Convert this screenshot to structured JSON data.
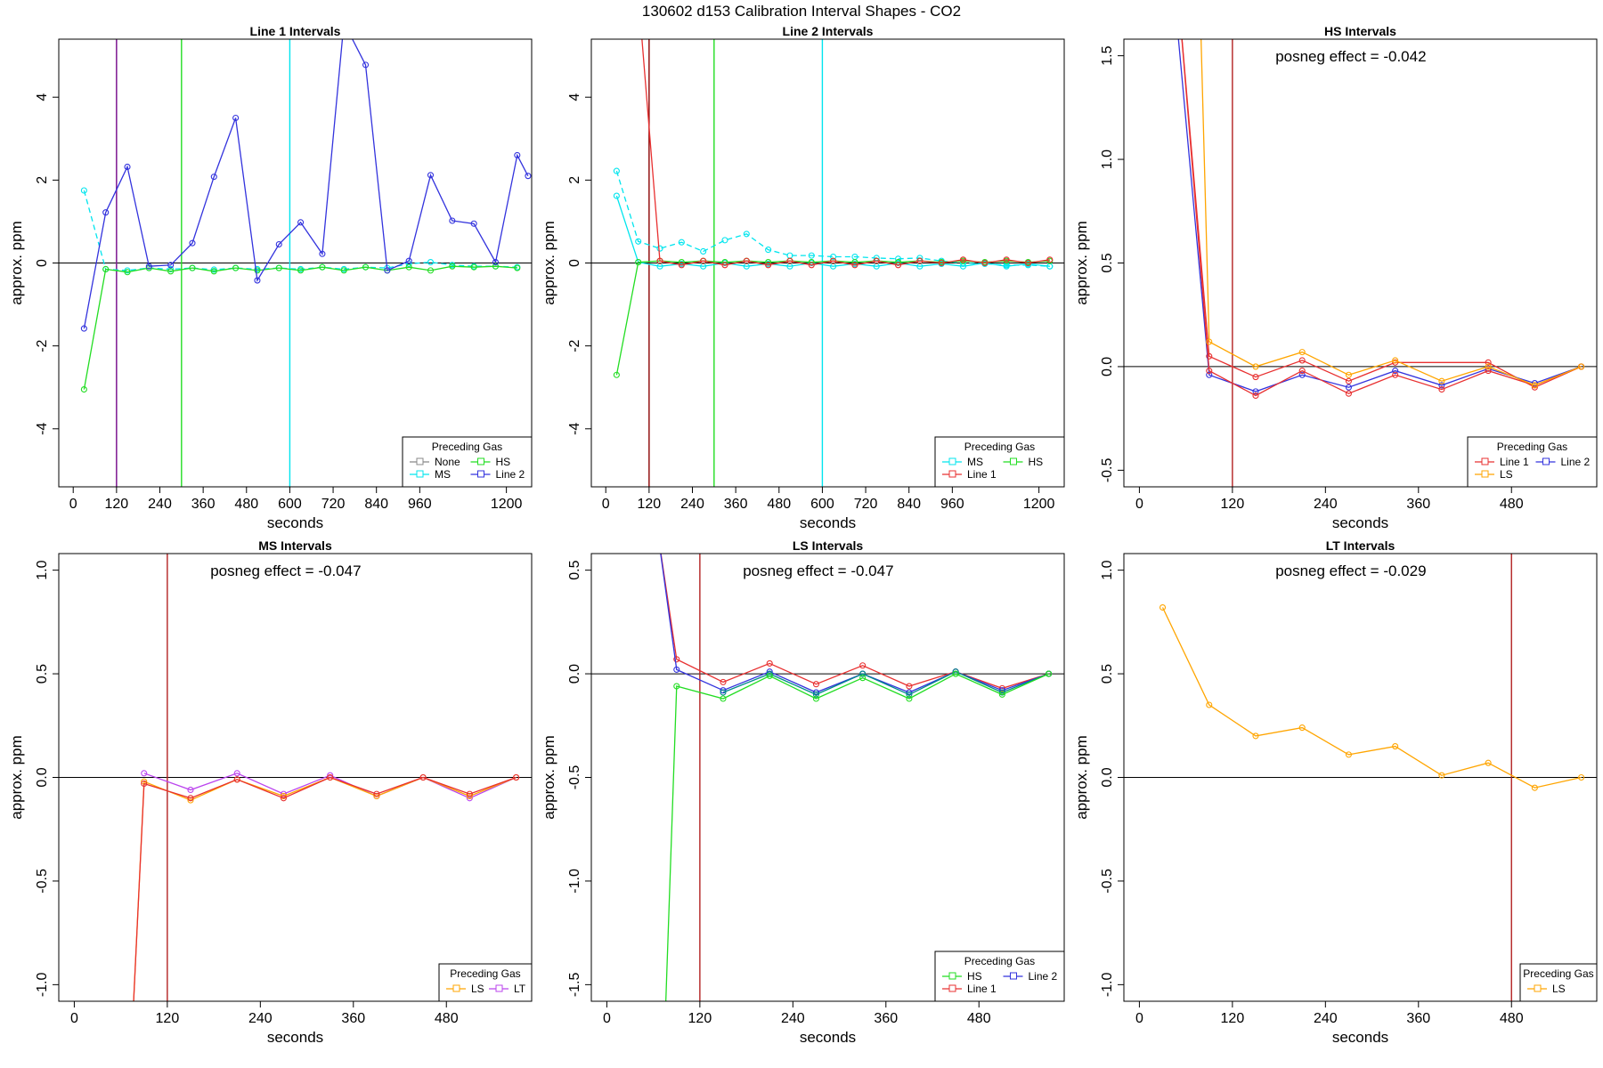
{
  "figure": {
    "title": "130602  d153   Calibration Interval Shapes - CO2"
  },
  "chart_data": [
    {
      "type": "line",
      "title": "Line 1 Intervals",
      "xlabel": "seconds",
      "ylabel": "approx. ppm",
      "xlim": [
        -40,
        1270
      ],
      "ylim": [
        -5.4,
        5.4
      ],
      "xticks": [
        0,
        120,
        240,
        360,
        480,
        600,
        720,
        840,
        960,
        1200
      ],
      "yticks": [
        -4,
        -2,
        0,
        2,
        4
      ],
      "vlines": [
        {
          "x": 120,
          "color": "#B22222"
        },
        {
          "x": 120,
          "color": "#7B1FA2"
        },
        {
          "x": 300,
          "color": "#22DD22"
        },
        {
          "x": 600,
          "color": "#00E5EE"
        }
      ],
      "legend": {
        "title": "Preceding Gas",
        "position": "bottom-right",
        "columns": 2,
        "items": [
          {
            "label": "None",
            "color": "#888888"
          },
          {
            "label": "HS",
            "color": "#22DD22"
          },
          {
            "label": "MS",
            "color": "#00E5EE"
          },
          {
            "label": "Line 2",
            "color": "#3333DD"
          }
        ]
      },
      "series": [
        {
          "name": "MS",
          "color": "#00E5EE",
          "dashed": true,
          "x": [
            30,
            90,
            150,
            210,
            270,
            330,
            390,
            450,
            510,
            570,
            630,
            690,
            750,
            810,
            870,
            930,
            990,
            1050,
            1110,
            1170,
            1230
          ],
          "y": [
            1.75,
            -0.15,
            -0.18,
            -0.12,
            -0.15,
            -0.12,
            -0.16,
            -0.12,
            -0.15,
            -0.12,
            -0.15,
            -0.1,
            -0.15,
            -0.1,
            -0.12,
            -0.02,
            0.02,
            -0.05,
            -0.08,
            -0.08,
            -0.1
          ]
        },
        {
          "name": "HS",
          "color": "#22DD22",
          "x": [
            30,
            90,
            150,
            210,
            270,
            330,
            390,
            450,
            510,
            570,
            630,
            690,
            750,
            810,
            870,
            930,
            990,
            1050,
            1110,
            1170,
            1230
          ],
          "y": [
            -3.05,
            -0.15,
            -0.22,
            -0.12,
            -0.2,
            -0.12,
            -0.2,
            -0.12,
            -0.18,
            -0.12,
            -0.18,
            -0.1,
            -0.18,
            -0.1,
            -0.18,
            -0.1,
            -0.18,
            -0.08,
            -0.1,
            -0.08,
            -0.12
          ]
        },
        {
          "name": "Line 2",
          "color": "#3333DD",
          "x": [
            30,
            90,
            150,
            210,
            270,
            330,
            390,
            450,
            510,
            570,
            630,
            690,
            750,
            810,
            870,
            930,
            990,
            1050,
            1110,
            1170,
            1230,
            1260
          ],
          "y": [
            -1.58,
            1.22,
            2.32,
            -0.08,
            -0.05,
            0.48,
            2.08,
            3.5,
            -0.42,
            0.45,
            0.98,
            0.22,
            5.8,
            4.78,
            -0.18,
            0.05,
            2.12,
            1.02,
            0.95,
            0.02,
            2.6,
            2.1
          ]
        }
      ]
    },
    {
      "type": "line",
      "title": "Line 2 Intervals",
      "xlabel": "seconds",
      "ylabel": "approx. ppm",
      "xlim": [
        -40,
        1270
      ],
      "ylim": [
        -5.4,
        5.4
      ],
      "xticks": [
        0,
        120,
        240,
        360,
        480,
        600,
        720,
        840,
        960,
        1200
      ],
      "yticks": [
        -4,
        -2,
        0,
        2,
        4
      ],
      "vlines": [
        {
          "x": 120,
          "color": "#8B0000"
        },
        {
          "x": 300,
          "color": "#22DD22"
        },
        {
          "x": 600,
          "color": "#00E5EE"
        }
      ],
      "legend": {
        "title": "Preceding Gas",
        "position": "bottom-right",
        "columns": 2,
        "items": [
          {
            "label": "MS",
            "color": "#00E5EE"
          },
          {
            "label": "HS",
            "color": "#22DD22"
          },
          {
            "label": "Line 1",
            "color": "#E83030"
          }
        ]
      },
      "series": [
        {
          "name": "MS",
          "color": "#00E5EE",
          "dashed": true,
          "x": [
            30,
            90,
            150,
            210,
            270,
            330,
            390,
            450,
            510,
            570,
            630,
            690,
            750,
            810,
            870,
            930,
            990,
            1050,
            1110,
            1170,
            1230
          ],
          "y": [
            2.22,
            0.52,
            0.35,
            0.5,
            0.28,
            0.55,
            0.7,
            0.32,
            0.18,
            0.18,
            0.15,
            0.15,
            0.12,
            0.1,
            0.12,
            0.05,
            0.0,
            -0.02,
            -0.05,
            -0.05,
            -0.08
          ]
        },
        {
          "name": "MS",
          "color": "#00E5EE",
          "x": [
            30,
            90,
            150,
            210,
            270,
            330,
            390,
            450,
            510,
            570,
            630,
            690,
            750,
            810,
            870,
            930,
            990,
            1050,
            1110,
            1170,
            1230
          ],
          "y": [
            1.62,
            0.02,
            -0.08,
            -0.02,
            -0.08,
            0.0,
            -0.08,
            -0.02,
            -0.08,
            0.0,
            -0.08,
            -0.02,
            -0.08,
            0.0,
            -0.08,
            -0.02,
            -0.08,
            0.0,
            -0.08,
            -0.02,
            -0.08
          ]
        },
        {
          "name": "HS",
          "color": "#22DD22",
          "x": [
            30,
            90,
            150,
            210,
            270,
            330,
            390,
            450,
            510,
            570,
            630,
            690,
            750,
            810,
            870,
            930,
            990,
            1050,
            1110,
            1170,
            1230
          ],
          "y": [
            -2.7,
            0.02,
            0.05,
            0.02,
            0.05,
            0.02,
            0.05,
            0.02,
            0.05,
            0.02,
            0.05,
            0.02,
            0.05,
            0.02,
            0.05,
            0.02,
            0.05,
            0.02,
            0.05,
            0.02,
            0.05
          ]
        },
        {
          "name": "Line 1",
          "color": "#E83030",
          "x": [
            90,
            150,
            210,
            270,
            330,
            390,
            450,
            510,
            570,
            630,
            690,
            750,
            810,
            870,
            930,
            990,
            1050,
            1110,
            1170,
            1230
          ],
          "y": [
            6.5,
            0.05,
            -0.05,
            0.05,
            -0.05,
            0.05,
            -0.05,
            0.05,
            -0.05,
            0.05,
            -0.05,
            0.05,
            -0.05,
            0.05,
            0.0,
            0.08,
            0.0,
            0.08,
            0.0,
            0.08
          ]
        }
      ]
    },
    {
      "type": "line",
      "title": "HS Intervals",
      "xlabel": "seconds",
      "ylabel": "approx. ppm",
      "annotation": "posneg effect = -0.042",
      "xlim": [
        -20,
        590
      ],
      "ylim": [
        -0.58,
        1.58
      ],
      "xticks": [
        0,
        120,
        240,
        360,
        480
      ],
      "yticks": [
        -0.5,
        0.0,
        0.5,
        1.0,
        1.5
      ],
      "ytick_labels": [
        "-0.5",
        "0.0",
        "0.5",
        "1.0",
        "1.5"
      ],
      "vlines": [
        {
          "x": 120,
          "color": "#B22222"
        }
      ],
      "legend": {
        "title": "Preceding Gas",
        "position": "bottom-right",
        "columns": 2,
        "items": [
          {
            "label": "Line 1",
            "color": "#E83030"
          },
          {
            "label": "Line 2",
            "color": "#3333DD"
          },
          {
            "label": "LS",
            "color": "#FFA500"
          }
        ]
      },
      "series": [
        {
          "name": "Line 1",
          "color": "#E83030",
          "x": [
            50,
            90,
            150,
            210,
            270,
            330,
            450,
            510,
            570
          ],
          "y": [
            1.8,
            0.05,
            -0.05,
            0.03,
            -0.07,
            0.02,
            0.02,
            -0.1,
            0.0
          ]
        },
        {
          "name": "Line 2",
          "color": "#3333DD",
          "x": [
            45,
            90,
            150,
            210,
            270,
            330,
            390,
            450,
            510,
            570
          ],
          "y": [
            1.8,
            -0.04,
            -0.12,
            -0.04,
            -0.1,
            -0.02,
            -0.09,
            -0.01,
            -0.08,
            0.0
          ]
        },
        {
          "name": "",
          "color": "#E83030",
          "x": [
            50,
            90,
            150,
            210,
            270,
            330,
            390,
            450,
            510,
            570
          ],
          "y": [
            1.8,
            -0.02,
            -0.14,
            -0.02,
            -0.13,
            -0.04,
            -0.11,
            -0.02,
            -0.09,
            0.0
          ]
        },
        {
          "name": "LS",
          "color": "#FFA500",
          "x": [
            78,
            90,
            150,
            210,
            270,
            330,
            390,
            450,
            510,
            570
          ],
          "y": [
            1.8,
            0.12,
            0.0,
            0.07,
            -0.04,
            0.03,
            -0.07,
            0.0,
            -0.09,
            0.0
          ]
        }
      ]
    },
    {
      "type": "line",
      "title": "MS Intervals",
      "xlabel": "seconds",
      "ylabel": "approx. ppm",
      "annotation": "posneg effect = -0.047",
      "xlim": [
        -20,
        590
      ],
      "ylim": [
        -1.08,
        1.08
      ],
      "xticks": [
        0,
        120,
        240,
        360,
        480
      ],
      "yticks": [
        -1.0,
        -0.5,
        0.0,
        0.5,
        1.0
      ],
      "ytick_labels": [
        "-1.0",
        "-0.5",
        "0.0",
        "0.5",
        "1.0"
      ],
      "vlines": [
        {
          "x": 120,
          "color": "#B22222"
        }
      ],
      "legend": {
        "title": "Preceding Gas",
        "position": "bottom-right",
        "columns": 2,
        "items": [
          {
            "label": "LS",
            "color": "#FFA500"
          },
          {
            "label": "LT",
            "color": "#BB44EE"
          }
        ]
      },
      "series": [
        {
          "name": "LT",
          "color": "#BB44EE",
          "x": [
            90,
            150,
            210,
            270,
            330,
            390,
            450,
            510,
            570
          ],
          "y": [
            0.02,
            -0.06,
            0.02,
            -0.08,
            0.01,
            -0.09,
            0.0,
            -0.1,
            0.0
          ]
        },
        {
          "name": "LS",
          "color": "#FFA500",
          "x": [
            75,
            90,
            150,
            210,
            270,
            330,
            390,
            450,
            510,
            570
          ],
          "y": [
            -1.2,
            -0.02,
            -0.11,
            -0.01,
            -0.09,
            0.0,
            -0.09,
            0.0,
            -0.09,
            0.0
          ]
        },
        {
          "name": "",
          "color": "#E83030",
          "x": [
            75,
            90,
            150,
            210,
            270,
            330,
            390,
            450,
            510,
            570
          ],
          "y": [
            -1.2,
            -0.03,
            -0.1,
            -0.01,
            -0.1,
            0.0,
            -0.08,
            0.0,
            -0.08,
            0.0
          ]
        }
      ]
    },
    {
      "type": "line",
      "title": "LS Intervals",
      "xlabel": "seconds",
      "ylabel": "approx. ppm",
      "annotation": "posneg effect = -0.047",
      "xlim": [
        -20,
        590
      ],
      "ylim": [
        -1.58,
        0.58
      ],
      "xticks": [
        0,
        120,
        240,
        360,
        480
      ],
      "yticks": [
        -1.5,
        -1.0,
        -0.5,
        0.0,
        0.5
      ],
      "ytick_labels": [
        "-1.5",
        "-1.0",
        "-0.5",
        "0.0",
        "0.5"
      ],
      "vlines": [
        {
          "x": 120,
          "color": "#B22222"
        }
      ],
      "legend": {
        "title": "Preceding Gas",
        "position": "bottom-right",
        "columns": 2,
        "items": [
          {
            "label": "HS",
            "color": "#22DD22"
          },
          {
            "label": "Line 2",
            "color": "#3333DD"
          },
          {
            "label": "Line 1",
            "color": "#E83030"
          }
        ]
      },
      "series": [
        {
          "name": "Line 1",
          "color": "#E83030",
          "x": [
            65,
            90,
            150,
            210,
            270,
            330,
            390,
            450,
            510,
            570
          ],
          "y": [
            0.7,
            0.07,
            -0.04,
            0.05,
            -0.05,
            0.04,
            -0.06,
            0.01,
            -0.07,
            0.0
          ]
        },
        {
          "name": "Line 2",
          "color": "#3333DD",
          "x": [
            65,
            90,
            150,
            210,
            270,
            330,
            390,
            450,
            510,
            570
          ],
          "y": [
            0.7,
            0.02,
            -0.08,
            0.01,
            -0.09,
            0.0,
            -0.09,
            0.01,
            -0.08,
            0.0
          ]
        },
        {
          "name": "",
          "color": "#008B8B",
          "x": [
            150,
            210,
            270,
            330,
            390,
            450,
            510,
            570
          ],
          "y": [
            -0.09,
            0.0,
            -0.1,
            0.0,
            -0.1,
            0.01,
            -0.09,
            0.0
          ]
        },
        {
          "name": "HS",
          "color": "#22DD22",
          "x": [
            75,
            90,
            150,
            210,
            270,
            330,
            390,
            450,
            510,
            570
          ],
          "y": [
            -1.7,
            -0.06,
            -0.12,
            -0.01,
            -0.12,
            -0.02,
            -0.12,
            0.0,
            -0.1,
            0.0
          ]
        }
      ]
    },
    {
      "type": "line",
      "title": "LT Intervals",
      "xlabel": "seconds",
      "ylabel": "approx. ppm",
      "annotation": "posneg effect = -0.029",
      "xlim": [
        -20,
        590
      ],
      "ylim": [
        -1.08,
        1.08
      ],
      "xticks": [
        0,
        120,
        240,
        360,
        480
      ],
      "yticks": [
        -1.0,
        -0.5,
        0.0,
        0.5,
        1.0
      ],
      "ytick_labels": [
        "-1.0",
        "-0.5",
        "0.0",
        "0.5",
        "1.0"
      ],
      "vlines": [
        {
          "x": 480,
          "color": "#B22222"
        }
      ],
      "legend": {
        "title": "Preceding Gas",
        "position": "bottom-right",
        "columns": 1,
        "items": [
          {
            "label": "LS",
            "color": "#FFA500"
          }
        ]
      },
      "series": [
        {
          "name": "LS",
          "color": "#FFA500",
          "x": [
            30,
            90,
            150,
            210,
            270,
            330,
            390,
            450,
            510,
            570
          ],
          "y": [
            0.82,
            0.35,
            0.2,
            0.24,
            0.11,
            0.15,
            0.01,
            0.07,
            -0.05,
            0.0
          ]
        }
      ]
    }
  ]
}
